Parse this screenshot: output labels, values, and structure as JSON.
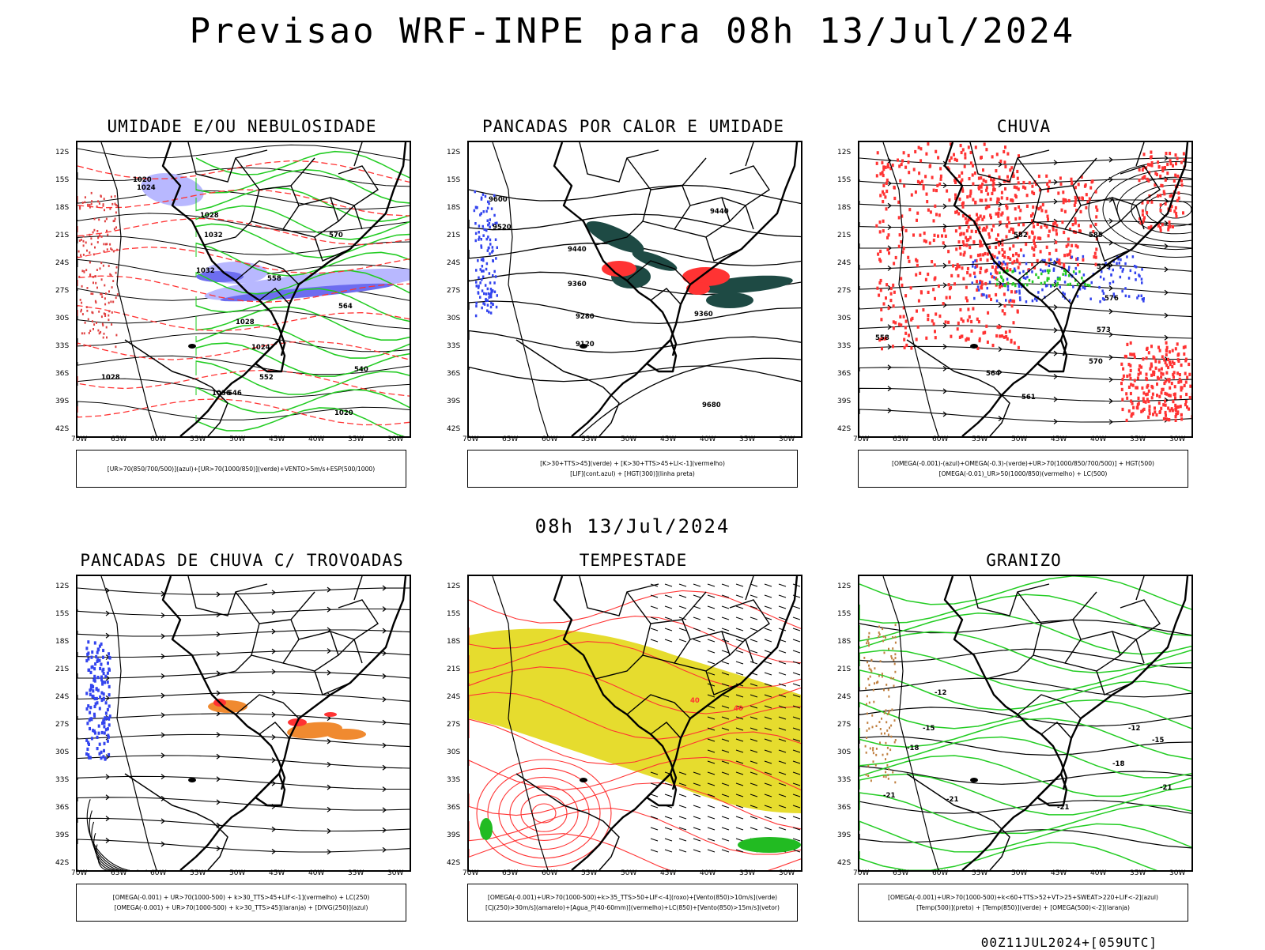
{
  "title": "Previsao WRF-INPE  para 08h 13/Jul/2024",
  "mid_title": "08h 13/Jul/2024",
  "footer": "00Z11JUL2024+[059UTC]",
  "lat_ticks": [
    "12S",
    "15S",
    "18S",
    "21S",
    "24S",
    "27S",
    "30S",
    "33S",
    "36S",
    "39S",
    "42S"
  ],
  "lon_ticks": [
    "70W",
    "65W",
    "60W",
    "55W",
    "50W",
    "45W",
    "40W",
    "35W",
    "30W"
  ],
  "colors": {
    "green": "#22cc22",
    "red": "#ff3333",
    "blue": "#3344ee",
    "yellow": "#e6dc2e",
    "orange": "#f08a30",
    "darkgreen": "#1e4a44"
  },
  "panels": [
    {
      "id": "umidade",
      "title": "UMIDADE E/OU NEBULOSIDADE",
      "legend": [
        "[UR>70(850/700/500)](azul)+[UR>70(1000/850)](verde)+VENTO>5m/s+ESP(500/1000)"
      ],
      "contour_labels": [
        "1020",
        "1024",
        "1028",
        "1032",
        "1032",
        "1028",
        "1024",
        "1020",
        "570",
        "564",
        "558",
        "552",
        "546",
        "540",
        "1036",
        "1028"
      ]
    },
    {
      "id": "pancadas-calor",
      "title": "PANCADAS POR CALOR E UMIDADE",
      "legend": [
        "[K>30+TTS>45](verde) + [K>30+TTS>45+LI<-1](vermelho)",
        "[LIF](cont.azul) + [HGT(300)](linha preta)"
      ],
      "contour_labels": [
        "9600",
        "9520",
        "9440",
        "9360",
        "9280",
        "9120",
        "9680",
        "9440",
        "9360"
      ]
    },
    {
      "id": "chuva",
      "title": "CHUVA",
      "legend": [
        "[OMEGA(-0.001)-(azul)+OMEGA(-0.3)-(verde)+UR>70(1000/850/700/500)] + HGT(500)",
        "[OMEGA(-0.01)_UR>50(1000/850)(vermelho) + LC(500)"
      ],
      "contour_labels": [
        "582",
        "585",
        "579",
        "576",
        "573",
        "570",
        "564",
        "561",
        "558"
      ]
    },
    {
      "id": "pancadas-trovoadas",
      "title": "PANCADAS DE CHUVA C/ TROVOADAS",
      "legend": [
        "[OMEGA(-0.001) + UR>70(1000-500) + k>30_TTS>45+LIF<-1](vermelho) + LC(250)",
        "[OMEGA(-0.001) + UR>70(1000-500) + k>30_TTS>45](laranja) + [DIVG(250)](azul)"
      ],
      "contour_labels": []
    },
    {
      "id": "tempestade",
      "title": "TEMPESTADE",
      "legend": [
        "[OMEGA(-0.001)+UR>70(1000-500)+k>35_TTS>50+LIF<-4](roxo)+[Vento(850)>10m/s](verde)",
        "[CJ(250)>30m/s](amarelo)+[Agua_P(40-60mm)](vermelho)+LC(850)+[Vento(850)>15m/s](vetor)"
      ],
      "contour_labels": [
        "40",
        "40"
      ]
    },
    {
      "id": "granizo",
      "title": "GRANIZO",
      "legend": [
        "[OMEGA(-0.001)+UR>70(1000-500)+k<60+TTS>52+VT>25+SWEAT>220+LIF<-2](azul)",
        "[Temp(500)](preto) + [Temp(850)](verde) + [OMEGA(500)<-2](laranja)"
      ],
      "contour_labels": [
        "-12",
        "-15",
        "-18",
        "-21",
        "-21",
        "-12",
        "-15",
        "-18",
        "-21",
        "-21"
      ]
    }
  ]
}
